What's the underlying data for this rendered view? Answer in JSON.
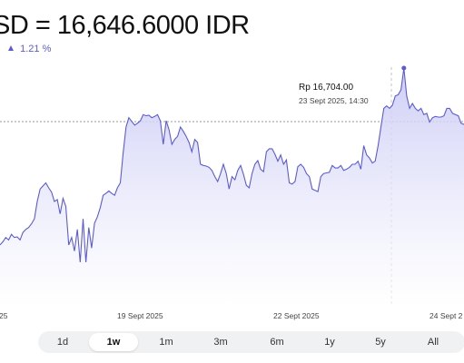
{
  "header": {
    "title": "SD = 16,646.6000 IDR",
    "change_percent": "1.21 %",
    "trend": "up"
  },
  "tooltip": {
    "price": "Rp 16,704.00",
    "date": "23 Sept 2025, 14:30"
  },
  "x_labels": [
    "25",
    "19 Sept 2025",
    "22 Sept 2025",
    "24 Sept 2"
  ],
  "ranges": [
    {
      "label": "1d",
      "active": false
    },
    {
      "label": "1w",
      "active": true
    },
    {
      "label": "1m",
      "active": false
    },
    {
      "label": "3m",
      "active": false
    },
    {
      "label": "6m",
      "active": false
    },
    {
      "label": "1y",
      "active": false
    },
    {
      "label": "5y",
      "active": false
    },
    {
      "label": "All",
      "active": false
    }
  ],
  "colors": {
    "accent": "#5b5bd6",
    "fill_top": "#c9c9f5",
    "fill_bottom": "#ffffff"
  },
  "chart_data": {
    "type": "area",
    "series": [
      {
        "values": [
          16420,
          16425,
          16432,
          16428,
          16437,
          16432,
          16433,
          16428,
          16440,
          16445,
          16448,
          16454,
          16462,
          16490,
          16510,
          16515,
          16520,
          16512,
          16505,
          16490,
          16493,
          16470,
          16495,
          16482,
          16420,
          16432,
          16410,
          16445,
          16392,
          16462,
          16392,
          16448,
          16415,
          16455,
          16465,
          16480,
          16500,
          16503,
          16507,
          16503,
          16500,
          16512,
          16520,
          16568,
          16610,
          16625,
          16619,
          16613,
          16616,
          16620,
          16630,
          16628,
          16629,
          16625,
          16627,
          16630,
          16620,
          16582,
          16620,
          16606,
          16582,
          16590,
          16595,
          16610,
          16603,
          16595,
          16585,
          16570,
          16590,
          16585,
          16550,
          16548,
          16547,
          16545,
          16540,
          16530,
          16522,
          16535,
          16550,
          16535,
          16510,
          16530,
          16525,
          16540,
          16548,
          16534,
          16516,
          16512,
          16535,
          16550,
          16556,
          16542,
          16538,
          16570,
          16575,
          16575,
          16566,
          16555,
          16565,
          16550,
          16557,
          16520,
          16518,
          16522,
          16546,
          16550,
          16545,
          16535,
          16530,
          16510,
          16508,
          16506,
          16530,
          16535,
          16536,
          16537,
          16548,
          16544,
          16544,
          16548,
          16540,
          16542,
          16545,
          16550,
          16550,
          16555,
          16542,
          16580,
          16565,
          16560,
          16552,
          16555,
          16580,
          16610,
          16640,
          16644,
          16640,
          16645,
          16660,
          16662,
          16670,
          16705,
          16660,
          16640,
          16648,
          16640,
          16636,
          16640,
          16630,
          16632,
          16618,
          16625,
          16627,
          16626,
          16626,
          16628,
          16640,
          16640,
          16632,
          16630,
          16628,
          16616,
          16614
        ]
      }
    ],
    "annotation": {
      "price": "Rp 16,704.00",
      "date": "23 Sept 2025, 14:30"
    },
    "grid": false,
    "legend": "none"
  }
}
